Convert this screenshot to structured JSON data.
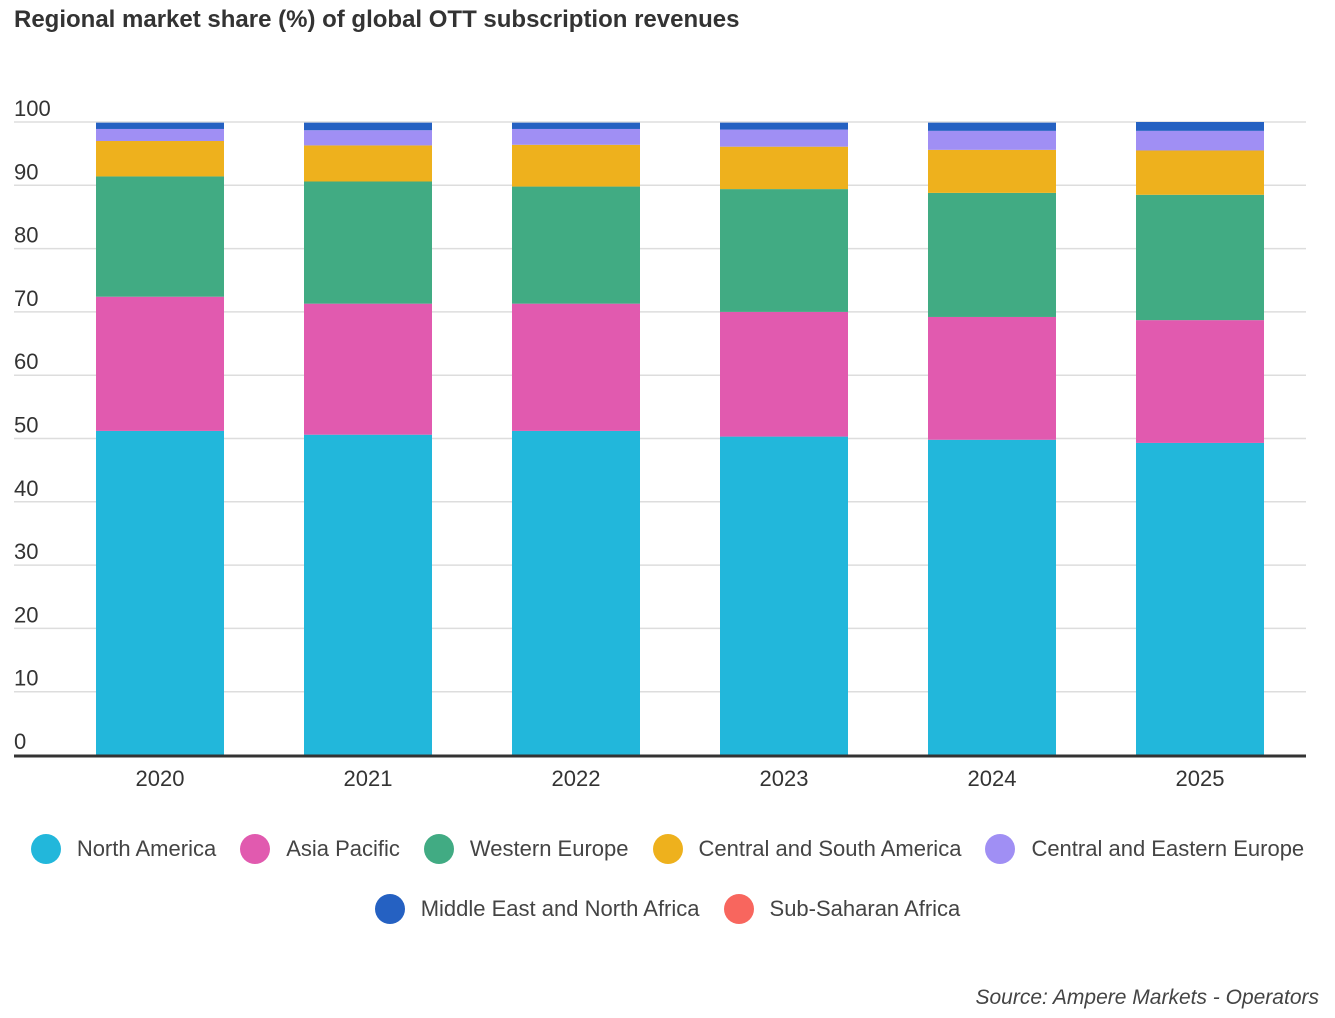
{
  "chart_data": {
    "type": "bar",
    "stacked": true,
    "title": "Regional market share (%) of global OTT subscription revenues",
    "xlabel": "",
    "ylabel": "",
    "ylim": [
      0,
      100
    ],
    "yticks": [
      0,
      10,
      20,
      30,
      40,
      50,
      60,
      70,
      80,
      90,
      100
    ],
    "grid": true,
    "legend_position": "bottom",
    "categories": [
      "2020",
      "2021",
      "2022",
      "2023",
      "2024",
      "2025"
    ],
    "series": [
      {
        "name": "North America",
        "color": "#22b7db",
        "values": [
          51.2,
          50.6,
          51.2,
          50.3,
          49.8,
          49.3
        ]
      },
      {
        "name": "Asia Pacific",
        "color": "#e15aaf",
        "values": [
          21.2,
          20.7,
          20.1,
          19.7,
          19.4,
          19.4
        ]
      },
      {
        "name": "Western Europe",
        "color": "#41ab83",
        "values": [
          19.0,
          19.3,
          18.5,
          19.4,
          19.6,
          19.8
        ]
      },
      {
        "name": "Central and South America",
        "color": "#eeb11d",
        "values": [
          5.6,
          5.7,
          6.6,
          6.7,
          6.8,
          7.0
        ]
      },
      {
        "name": "Central and Eastern Europe",
        "color": "#a08ff4",
        "values": [
          1.9,
          2.4,
          2.5,
          2.7,
          3.0,
          3.1
        ]
      },
      {
        "name": "Middle East and North Africa",
        "color": "#2561c2",
        "values": [
          1.0,
          1.2,
          1.0,
          1.1,
          1.3,
          1.4
        ]
      },
      {
        "name": "Sub-Saharan Africa",
        "color": "#f8665e",
        "values": [
          0,
          0,
          0,
          0,
          0,
          0
        ]
      }
    ],
    "source": "Source: Ampere Markets - Operators"
  }
}
